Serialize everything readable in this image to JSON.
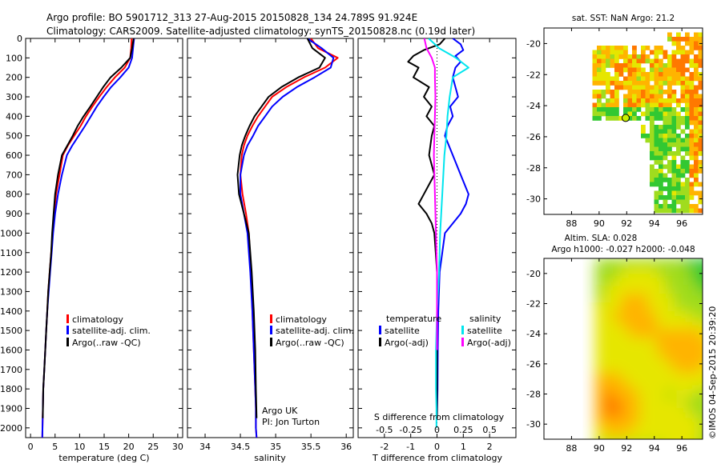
{
  "header": {
    "line1": "Argo profile: BO 5901712_313 27-Aug-2015 20150828_134 24.789S 91.924E",
    "line2": "Climatology: CARS2009. Satellite-adjusted climatology: synTS_20150828.nc (0.19d later)"
  },
  "stamp": "©IMOS 04-Sep-2015 20:39:20",
  "colors": {
    "climatology": "#ff0000",
    "satellite": "#0000ff",
    "argo": "#000000",
    "sal_satellite": "#00e5ee",
    "sal_argo": "#ff00ff"
  },
  "chart_data": [
    {
      "id": "temperature",
      "type": "line",
      "xlabel": "temperature (deg C)",
      "ylabel": "",
      "xlim": [
        -1,
        31
      ],
      "ylim": [
        2050,
        0
      ],
      "xticks": [
        0,
        5,
        10,
        15,
        20,
        25,
        30
      ],
      "yticks": [
        0,
        100,
        200,
        300,
        400,
        500,
        600,
        700,
        800,
        900,
        1000,
        1100,
        1200,
        1300,
        1400,
        1500,
        1600,
        1700,
        1800,
        1900,
        2000
      ],
      "legend": {
        "placement": "lower-left",
        "items": [
          {
            "label": "climatology",
            "color": "#ff0000"
          },
          {
            "label": "satellite-adj. clim.",
            "color": "#0000ff"
          },
          {
            "label": "Argo(..raw -QC)",
            "color": "#000000"
          }
        ]
      },
      "series": [
        {
          "key": "climatology",
          "color": "#ff0000",
          "width": 2,
          "x": [
            20.6,
            20.5,
            20.3,
            19.2,
            17.2,
            15.5,
            14.0,
            12.6,
            11.3,
            10.2,
            8.9,
            7.6,
            6.6,
            5.9,
            5.2,
            4.8,
            4.5,
            4.2,
            3.9,
            3.6,
            3.4,
            3.2,
            3.0,
            2.8,
            2.6,
            2.4
          ],
          "y": [
            0,
            50,
            100,
            150,
            200,
            250,
            300,
            350,
            400,
            450,
            500,
            550,
            600,
            700,
            800,
            900,
            1000,
            1100,
            1200,
            1300,
            1400,
            1500,
            1600,
            1700,
            1800,
            2050
          ]
        },
        {
          "key": "satellite",
          "color": "#0000ff",
          "width": 2,
          "x": [
            21.1,
            20.9,
            20.7,
            20.0,
            18.3,
            16.4,
            14.9,
            13.5,
            12.3,
            11.1,
            9.8,
            8.5,
            7.4,
            6.4,
            5.6,
            5.0,
            4.6,
            4.3,
            4.0,
            3.7,
            3.4,
            3.2,
            3.0,
            2.8,
            2.6,
            2.4
          ],
          "y": [
            0,
            50,
            100,
            150,
            200,
            250,
            300,
            350,
            400,
            450,
            500,
            550,
            600,
            700,
            800,
            900,
            1000,
            1100,
            1200,
            1300,
            1400,
            1500,
            1600,
            1700,
            1800,
            2050
          ]
        },
        {
          "key": "argo",
          "color": "#000000",
          "width": 2,
          "x": [
            21.0,
            20.7,
            20.3,
            18.5,
            16.3,
            14.8,
            13.5,
            12.2,
            10.8,
            9.6,
            8.6,
            7.5,
            6.4,
            5.6,
            5.0,
            4.7,
            4.4,
            4.2,
            3.9,
            3.6,
            3.4,
            3.2,
            3.0,
            2.8,
            2.6,
            2.5
          ],
          "y": [
            0,
            50,
            100,
            150,
            200,
            250,
            300,
            350,
            400,
            450,
            500,
            550,
            600,
            700,
            800,
            900,
            1000,
            1100,
            1200,
            1300,
            1400,
            1500,
            1600,
            1700,
            1800,
            1950
          ]
        }
      ]
    },
    {
      "id": "salinity",
      "type": "line",
      "xlabel": "salinity",
      "ylabel": "",
      "xlim": [
        33.75,
        36.1
      ],
      "ylim": [
        2050,
        0
      ],
      "xticks": [
        34,
        34.5,
        35,
        35.5,
        36
      ],
      "xtick_labels": [
        "34",
        "34.5",
        "35",
        "35.5",
        "36"
      ],
      "legend": {
        "placement": "lower-right",
        "items": [
          {
            "label": "climatology",
            "color": "#ff0000"
          },
          {
            "label": "satellite-adj. clim.",
            "color": "#0000ff"
          },
          {
            "label": "Argo(..raw -QC)",
            "color": "#000000"
          }
        ]
      },
      "annotations": [
        "Argo UK",
        "PI: Jon Turton"
      ],
      "series": [
        {
          "key": "climatology",
          "color": "#ff0000",
          "width": 2,
          "x": [
            35.5,
            35.6,
            35.88,
            35.7,
            35.4,
            35.15,
            34.95,
            34.85,
            34.75,
            34.67,
            34.6,
            34.55,
            34.52,
            34.5,
            34.53,
            34.58,
            34.62,
            34.65,
            34.67,
            34.69,
            34.7,
            34.71,
            34.72,
            34.72,
            34.73
          ],
          "y": [
            0,
            50,
            100,
            150,
            200,
            250,
            300,
            350,
            400,
            450,
            500,
            550,
            600,
            700,
            800,
            900,
            1000,
            1200,
            1400,
            1600,
            1700,
            1800,
            1900,
            2000,
            2050
          ]
        },
        {
          "key": "satellite",
          "color": "#0000ff",
          "width": 2,
          "x": [
            35.45,
            35.65,
            35.82,
            35.78,
            35.55,
            35.3,
            35.1,
            34.95,
            34.85,
            34.75,
            34.68,
            34.6,
            34.55,
            34.5,
            34.5,
            34.55,
            34.6,
            34.64,
            34.67,
            34.69,
            34.7,
            34.71,
            34.72,
            34.72,
            34.73
          ],
          "y": [
            0,
            50,
            100,
            150,
            200,
            250,
            300,
            350,
            400,
            450,
            500,
            550,
            600,
            700,
            800,
            900,
            1000,
            1200,
            1400,
            1600,
            1700,
            1800,
            1900,
            2000,
            2050
          ]
        },
        {
          "key": "argo",
          "color": "#000000",
          "width": 2,
          "x": [
            35.45,
            35.52,
            35.7,
            35.62,
            35.32,
            35.08,
            34.9,
            34.8,
            34.7,
            34.63,
            34.57,
            34.52,
            34.49,
            34.46,
            34.48,
            34.55,
            34.62,
            34.66,
            34.69,
            34.71,
            34.72,
            34.73
          ],
          "y": [
            0,
            50,
            100,
            150,
            200,
            250,
            300,
            350,
            400,
            450,
            500,
            550,
            600,
            700,
            800,
            900,
            1000,
            1200,
            1400,
            1600,
            1800,
            1950
          ]
        }
      ]
    },
    {
      "id": "difference",
      "type": "line",
      "xlabel": "T difference from climatology",
      "xlabel_top": "S difference from climatology",
      "ylabel": "",
      "xlim": [
        -3,
        3
      ],
      "ylim": [
        2050,
        0
      ],
      "xticks": [
        -2,
        -1,
        0,
        1,
        2
      ],
      "xtick_labels": [
        "-2",
        "-1",
        "0",
        "1",
        "2"
      ],
      "s_ticks": [
        -0.5,
        -0.25,
        0,
        0.25,
        0.5
      ],
      "s_tick_labels": [
        "-0.5",
        "-0.25",
        "0",
        "0.25",
        "0.5"
      ],
      "legend": {
        "placement": "lower-center",
        "temperature_title": "temperature",
        "salinity_title": "salinity",
        "temperature_items": [
          {
            "label": "satellite",
            "color": "#0000ff"
          },
          {
            "label": "Argo(-adj)",
            "color": "#000000"
          }
        ],
        "salinity_items": [
          {
            "label": "satellite",
            "color": "#00e5ee"
          },
          {
            "label": "Argo(-adj)",
            "color": "#ff00ff"
          }
        ]
      },
      "series": [
        {
          "key": "t_satellite",
          "color": "#0000ff",
          "width": 2,
          "x": [
            0.6,
            0.9,
            1.0,
            0.7,
            0.9,
            0.7,
            0.6,
            0.7,
            0.8,
            0.5,
            0.6,
            0.4,
            0.3,
            0.6,
            0.9,
            1.2,
            1.1,
            0.9,
            0.6,
            0.3,
            0.2,
            0.1,
            0.05,
            0.03,
            0.02,
            0.0
          ],
          "y": [
            0,
            30,
            60,
            90,
            120,
            150,
            200,
            250,
            300,
            350,
            400,
            450,
            500,
            600,
            700,
            800,
            850,
            900,
            950,
            1000,
            1100,
            1200,
            1400,
            1600,
            1800,
            1950
          ]
        },
        {
          "key": "t_argo",
          "color": "#000000",
          "width": 2,
          "x": [
            0.3,
            0.1,
            -0.5,
            -0.9,
            -1.1,
            -0.7,
            -0.9,
            -0.3,
            -0.5,
            -0.2,
            -0.4,
            -0.1,
            -0.2,
            -0.3,
            -0.1,
            -0.5,
            -0.7,
            -0.4,
            -0.2,
            -0.1,
            -0.05,
            0.0,
            0.0,
            0.0,
            0.0,
            0.0
          ],
          "y": [
            0,
            30,
            60,
            90,
            120,
            150,
            200,
            250,
            300,
            350,
            400,
            450,
            500,
            600,
            700,
            800,
            850,
            900,
            950,
            1000,
            1100,
            1200,
            1400,
            1600,
            1800,
            1950
          ]
        },
        {
          "key": "s_satellite",
          "color": "#00e5ee",
          "width": 2,
          "x": [
            -0.08,
            0.02,
            0.18,
            0.3,
            0.15,
            0.12,
            0.1,
            0.09,
            0.07,
            0.05,
            0.03,
            0.02,
            0.0,
            -0.01,
            -0.01,
            -0.005,
            -0.005
          ],
          "y": [
            0,
            50,
            100,
            150,
            200,
            300,
            400,
            500,
            600,
            800,
            1000,
            1200,
            1400,
            1600,
            1800,
            1900,
            2000
          ]
        },
        {
          "key": "s_argo",
          "color": "#ff00ff",
          "width": 2,
          "x": [
            -0.12,
            -0.1,
            -0.05,
            -0.02,
            -0.02,
            -0.015,
            -0.02,
            -0.025,
            -0.03,
            -0.02,
            -0.01,
            0.0,
            0.0,
            0.0
          ],
          "y": [
            0,
            50,
            100,
            150,
            200,
            300,
            400,
            500,
            600,
            800,
            1000,
            1200,
            1400,
            1600
          ]
        }
      ]
    },
    {
      "id": "sst_map",
      "type": "heatmap",
      "title": "sat. SST: NaN Argo: 21.2",
      "xlim": [
        86,
        97.5
      ],
      "ylim": [
        -31,
        -19
      ],
      "xticks": [
        88,
        90,
        92,
        94,
        96
      ],
      "xtick_labels": [
        "88",
        "90",
        "92",
        "94",
        "96"
      ],
      "yticks": [
        -20,
        -22,
        -24,
        -26,
        -28,
        -30
      ],
      "ytick_labels": [
        "-20",
        "-22",
        "-24",
        "-26",
        "-28",
        "-30"
      ],
      "marker": {
        "lon": 91.924,
        "lat": -24.789,
        "color": "#c8f000"
      }
    },
    {
      "id": "sla_map",
      "type": "heatmap",
      "title_lines": [
        "Altim. SLA: 0.028",
        "Argo h1000: -0.027 h2000: -0.048"
      ],
      "xlim": [
        86,
        97.5
      ],
      "ylim": [
        -31,
        -19
      ],
      "xticks": [
        88,
        90,
        92,
        94,
        96
      ],
      "xtick_labels": [
        "88",
        "90",
        "92",
        "94",
        "96"
      ],
      "yticks": [
        -20,
        -22,
        -24,
        -26,
        -28,
        -30
      ],
      "ytick_labels": [
        "-20",
        "-22",
        "-24",
        "-26",
        "-28",
        "-30"
      ]
    }
  ]
}
